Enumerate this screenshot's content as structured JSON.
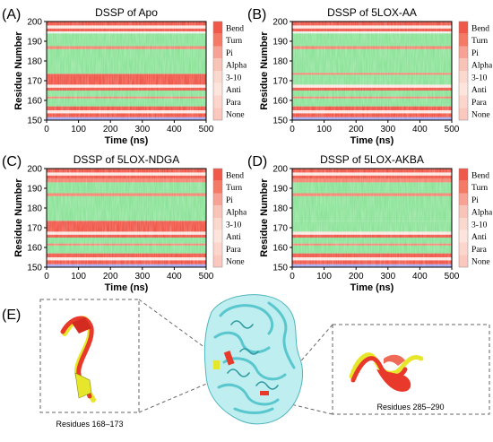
{
  "colors": {
    "Bend": "#f0584a",
    "Turn": "#f48470",
    "Pi": "#f2d2c8",
    "Alpha": "#8ee39a",
    "3-10": "#eef2ec",
    "Anti": "#c8d8f0",
    "Para": "#a6aaf4",
    "None": "#fde8e2",
    "legend": [
      "#f0584a",
      "#f47a66",
      "#f7a294",
      "#f9c4b8",
      "#fbd8ce",
      "#fde4dc",
      "#fcd6cc",
      "#fbc8bd"
    ],
    "reference_chain": "#e6e62a",
    "ligand_chain": "#e8392b",
    "protein": "#84d8dc"
  },
  "chart_data": [
    {
      "panel": "(A)",
      "type": "heatmap",
      "title": "DSSP of Apo",
      "xlabel": "Time (ns)",
      "ylabel": "Residue Number",
      "xlim": [
        0,
        500
      ],
      "ylim": [
        150,
        200
      ],
      "xticks": [
        "0",
        "100",
        "200",
        "300",
        "400",
        "500"
      ],
      "yticks": [
        "150",
        "160",
        "170",
        "180",
        "190",
        "200"
      ],
      "legend": [
        "Bend",
        "Turn",
        "Pi",
        "Alpha",
        "3-10",
        "Anti",
        "Para",
        "None"
      ],
      "bands": [
        {
          "y0": 150,
          "y1": 151.5,
          "state": "Para"
        },
        {
          "y0": 151.5,
          "y1": 153.5,
          "state": "Bend"
        },
        {
          "y0": 153.5,
          "y1": 155,
          "state": "None"
        },
        {
          "y0": 155,
          "y1": 157,
          "state": "Bend"
        },
        {
          "y0": 157,
          "y1": 161,
          "state": "Alpha"
        },
        {
          "y0": 161,
          "y1": 162,
          "state": "Turn"
        },
        {
          "y0": 162,
          "y1": 165,
          "state": "Alpha"
        },
        {
          "y0": 165,
          "y1": 166.5,
          "state": "Bend"
        },
        {
          "y0": 166.5,
          "y1": 168,
          "state": "None"
        },
        {
          "y0": 168,
          "y1": 173.5,
          "state": "Bend"
        },
        {
          "y0": 173.5,
          "y1": 186,
          "state": "Alpha"
        },
        {
          "y0": 186,
          "y1": 187.5,
          "state": "Turn"
        },
        {
          "y0": 187.5,
          "y1": 194,
          "state": "Alpha"
        },
        {
          "y0": 194,
          "y1": 195,
          "state": "3-10"
        },
        {
          "y0": 195,
          "y1": 196.5,
          "state": "Bend"
        },
        {
          "y0": 196.5,
          "y1": 198,
          "state": "None"
        },
        {
          "y0": 198,
          "y1": 200,
          "state": "Bend"
        }
      ]
    },
    {
      "panel": "(B)",
      "type": "heatmap",
      "title": "DSSP of 5LOX-AA",
      "xlabel": "Time (ns)",
      "ylabel": "Residue Number",
      "xlim": [
        0,
        500
      ],
      "ylim": [
        150,
        200
      ],
      "xticks": [
        "0",
        "100",
        "200",
        "300",
        "400",
        "500"
      ],
      "yticks": [
        "150",
        "160",
        "170",
        "180",
        "190",
        "200"
      ],
      "legend": [
        "Bend",
        "Turn",
        "Pi",
        "Alpha",
        "3-10",
        "Anti",
        "Para",
        "None"
      ],
      "bands": [
        {
          "y0": 150,
          "y1": 151.5,
          "state": "Para"
        },
        {
          "y0": 151.5,
          "y1": 153.5,
          "state": "Bend"
        },
        {
          "y0": 153.5,
          "y1": 155,
          "state": "None"
        },
        {
          "y0": 155,
          "y1": 157,
          "state": "Bend"
        },
        {
          "y0": 157,
          "y1": 161,
          "state": "Alpha"
        },
        {
          "y0": 161,
          "y1": 162,
          "state": "Turn"
        },
        {
          "y0": 162,
          "y1": 165,
          "state": "Alpha"
        },
        {
          "y0": 165,
          "y1": 166.5,
          "state": "Bend"
        },
        {
          "y0": 166.5,
          "y1": 168,
          "state": "None"
        },
        {
          "y0": 168,
          "y1": 173,
          "state": "Alpha"
        },
        {
          "y0": 173,
          "y1": 174,
          "state": "Turn"
        },
        {
          "y0": 174,
          "y1": 186,
          "state": "Alpha"
        },
        {
          "y0": 186,
          "y1": 187.5,
          "state": "Turn"
        },
        {
          "y0": 187.5,
          "y1": 194,
          "state": "Alpha"
        },
        {
          "y0": 194,
          "y1": 195,
          "state": "3-10"
        },
        {
          "y0": 195,
          "y1": 196.5,
          "state": "Bend"
        },
        {
          "y0": 196.5,
          "y1": 198,
          "state": "None"
        },
        {
          "y0": 198,
          "y1": 200,
          "state": "Bend"
        }
      ]
    },
    {
      "panel": "(C)",
      "type": "heatmap",
      "title": "DSSP of 5LOX-NDGA",
      "xlabel": "Time (ns)",
      "ylabel": "Residue Number",
      "xlim": [
        0,
        500
      ],
      "ylim": [
        150,
        200
      ],
      "xticks": [
        "0",
        "100",
        "200",
        "300",
        "400",
        "500"
      ],
      "yticks": [
        "150",
        "160",
        "170",
        "180",
        "190",
        "200"
      ],
      "legend": [
        "Bend",
        "Turn",
        "Pi",
        "Alpha",
        "3-10",
        "Anti",
        "Para",
        "None"
      ],
      "bands": [
        {
          "y0": 150,
          "y1": 151.5,
          "state": "Para"
        },
        {
          "y0": 151.5,
          "y1": 153.5,
          "state": "Bend"
        },
        {
          "y0": 153.5,
          "y1": 155,
          "state": "None"
        },
        {
          "y0": 155,
          "y1": 157,
          "state": "Bend"
        },
        {
          "y0": 157,
          "y1": 161,
          "state": "Alpha"
        },
        {
          "y0": 161,
          "y1": 162,
          "state": "Turn"
        },
        {
          "y0": 162,
          "y1": 165,
          "state": "Alpha"
        },
        {
          "y0": 165,
          "y1": 166.5,
          "state": "Bend"
        },
        {
          "y0": 166.5,
          "y1": 168,
          "state": "None"
        },
        {
          "y0": 168,
          "y1": 173.5,
          "state": "Bend"
        },
        {
          "y0": 173.5,
          "y1": 186,
          "state": "Alpha"
        },
        {
          "y0": 186,
          "y1": 187.5,
          "state": "Turn"
        },
        {
          "y0": 187.5,
          "y1": 193,
          "state": "Alpha"
        },
        {
          "y0": 193,
          "y1": 195,
          "state": "Turn"
        },
        {
          "y0": 195,
          "y1": 196.5,
          "state": "Bend"
        },
        {
          "y0": 196.5,
          "y1": 198,
          "state": "None"
        },
        {
          "y0": 198,
          "y1": 200,
          "state": "Bend"
        }
      ]
    },
    {
      "panel": "(D)",
      "type": "heatmap",
      "title": "DSSP of 5LOX-AKBA",
      "xlabel": "Time (ns)",
      "ylabel": "Residue Number",
      "xlim": [
        0,
        500
      ],
      "ylim": [
        150,
        200
      ],
      "xticks": [
        "0",
        "100",
        "200",
        "300",
        "400",
        "500"
      ],
      "yticks": [
        "150",
        "160",
        "170",
        "180",
        "190",
        "200"
      ],
      "legend": [
        "Bend",
        "Turn",
        "Pi",
        "Alpha",
        "3-10",
        "Anti",
        "Para",
        "None"
      ],
      "bands": [
        {
          "y0": 150,
          "y1": 151.5,
          "state": "Para"
        },
        {
          "y0": 151.5,
          "y1": 153.5,
          "state": "Bend"
        },
        {
          "y0": 153.5,
          "y1": 155,
          "state": "None"
        },
        {
          "y0": 155,
          "y1": 157,
          "state": "Bend"
        },
        {
          "y0": 157,
          "y1": 161,
          "state": "Alpha"
        },
        {
          "y0": 161,
          "y1": 162,
          "state": "Turn"
        },
        {
          "y0": 162,
          "y1": 165,
          "state": "Alpha"
        },
        {
          "y0": 165,
          "y1": 166.5,
          "state": "Bend"
        },
        {
          "y0": 166.5,
          "y1": 168,
          "state": "None"
        },
        {
          "y0": 168,
          "y1": 173.5,
          "state": "Alpha"
        },
        {
          "y0": 173.5,
          "y1": 186,
          "state": "Alpha"
        },
        {
          "y0": 186,
          "y1": 187.5,
          "state": "Turn"
        },
        {
          "y0": 187.5,
          "y1": 193,
          "state": "Alpha"
        },
        {
          "y0": 193,
          "y1": 195,
          "state": "Turn"
        },
        {
          "y0": 195,
          "y1": 196.5,
          "state": "Bend"
        },
        {
          "y0": 196.5,
          "y1": 198,
          "state": "None"
        },
        {
          "y0": 198,
          "y1": 200,
          "state": "Bend"
        }
      ]
    }
  ],
  "panel_e": {
    "label": "(E)",
    "left_caption": "Residues 168–173",
    "right_caption": "Residues 285–290"
  }
}
